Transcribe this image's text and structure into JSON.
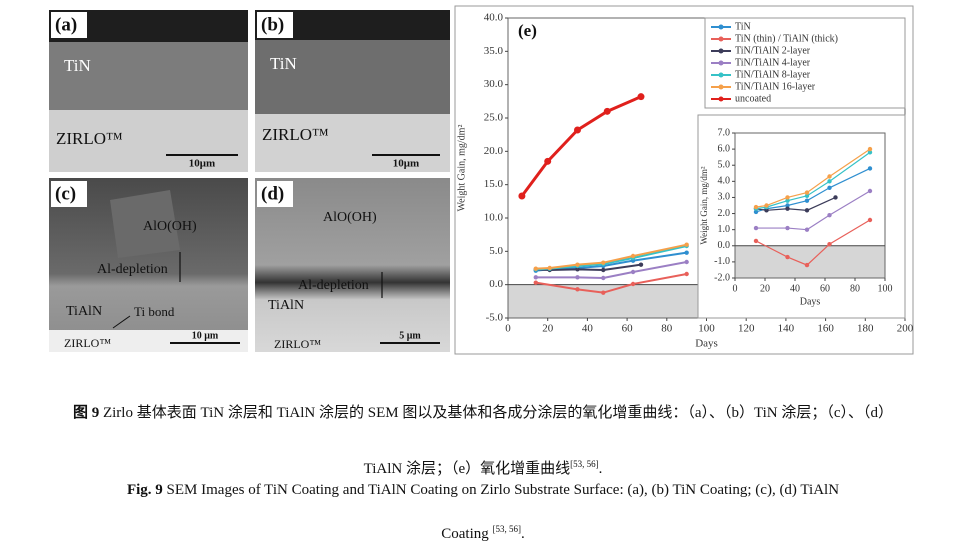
{
  "panels": {
    "a": {
      "label": "(a)",
      "layer_top": "TiN",
      "substrate": "ZIRLO™",
      "scale": "10μm"
    },
    "b": {
      "label": "(b)",
      "layer_top": "TiN",
      "substrate": "ZIRLO™",
      "scale": "10μm"
    },
    "c": {
      "label": "(c)",
      "oxide": "AlO(OH)",
      "depletion": "Al-depletion",
      "coating": "TiAlN",
      "bond": "Ti bond",
      "substrate": "ZIRLO™",
      "scale": "10 μm"
    },
    "d": {
      "label": "(d)",
      "oxide": "AlO(OH)",
      "depletion": "Al-depletion",
      "coating": "TiAlN",
      "substrate": "ZIRLO™",
      "scale": "5 μm"
    }
  },
  "chart_data": [
    {
      "type": "line",
      "panel_label": "(e)",
      "x_label": "Days",
      "y_label": "Weight Gain, mg/dm²",
      "xlim": [
        0,
        200
      ],
      "xticks": [
        0,
        20,
        40,
        60,
        80,
        100,
        120,
        140,
        160,
        180,
        200
      ],
      "ylim": [
        -5,
        40
      ],
      "yticks": [
        {
          "value": -5,
          "label": "-5.0"
        },
        {
          "value": 0,
          "label": "0.0"
        },
        {
          "value": 5,
          "label": "5.0"
        },
        {
          "value": 10,
          "label": "10.0"
        },
        {
          "value": 15,
          "label": "15.0"
        },
        {
          "value": 20,
          "label": "20.0"
        },
        {
          "value": 25,
          "label": "25.0"
        },
        {
          "value": 30,
          "label": "30.0"
        },
        {
          "value": 35,
          "label": "35.0"
        },
        {
          "value": 40,
          "label": "40.0"
        }
      ],
      "negative_shade": "#d6d6d6",
      "legend": "top-right",
      "series": [
        {
          "name": "TiN",
          "color": "#2f8fd0",
          "x": [
            14,
            21,
            35,
            48,
            63,
            90
          ],
          "values": [
            2.1,
            2.3,
            2.5,
            2.8,
            3.6,
            4.8
          ]
        },
        {
          "name": "TiN (thin) / TiAlN (thick)",
          "color": "#e8605a",
          "x": [
            14,
            35,
            48,
            63,
            90
          ],
          "values": [
            0.3,
            -0.7,
            -1.2,
            0.1,
            1.6
          ]
        },
        {
          "name": "TiN/TiAlN 2-layer",
          "color": "#3c3c5a",
          "x": [
            14,
            21,
            35,
            48,
            67
          ],
          "values": [
            2.3,
            2.2,
            2.3,
            2.2,
            3.0
          ]
        },
        {
          "name": "TiN/TiAlN 4-layer",
          "color": "#9b7fc4",
          "x": [
            14,
            35,
            48,
            63,
            90
          ],
          "values": [
            1.1,
            1.1,
            1.0,
            1.9,
            3.4
          ]
        },
        {
          "name": "TiN/TiAlN 8-layer",
          "color": "#36c2c7",
          "x": [
            14,
            21,
            35,
            48,
            63,
            90
          ],
          "values": [
            2.3,
            2.4,
            2.8,
            3.1,
            4.0,
            5.8
          ]
        },
        {
          "name": "TiN/TiAlN 16-layer",
          "color": "#f5a04a",
          "x": [
            14,
            21,
            35,
            48,
            63,
            90
          ],
          "values": [
            2.4,
            2.5,
            3.0,
            3.3,
            4.3,
            6.0
          ]
        },
        {
          "name": "uncoated",
          "color": "#e0201c",
          "x": [
            7,
            20,
            35,
            50,
            67
          ],
          "values": [
            13.3,
            18.5,
            23.2,
            26.0,
            28.2
          ]
        }
      ]
    },
    {
      "type": "line",
      "x_label": "Days",
      "y_label": "Weight Gain, mg/dm²",
      "xlim": [
        0,
        100
      ],
      "xticks": [
        0,
        20,
        40,
        60,
        80,
        100
      ],
      "ylim": [
        -2,
        7
      ],
      "yticks": [
        {
          "value": -2,
          "label": "-2.0"
        },
        {
          "value": -1,
          "label": "-1.0"
        },
        {
          "value": 0,
          "label": "0.0"
        },
        {
          "value": 1,
          "label": "1.0"
        },
        {
          "value": 2,
          "label": "2.0"
        },
        {
          "value": 3,
          "label": "3.0"
        },
        {
          "value": 4,
          "label": "4.0"
        },
        {
          "value": 5,
          "label": "5.0"
        },
        {
          "value": 6,
          "label": "6.0"
        },
        {
          "value": 7,
          "label": "7.0"
        }
      ],
      "negative_shade": "#d6d6d6",
      "series": [
        {
          "color": "#2f8fd0",
          "x": [
            14,
            21,
            35,
            48,
            63,
            90
          ],
          "values": [
            2.1,
            2.3,
            2.5,
            2.8,
            3.6,
            4.8
          ]
        },
        {
          "color": "#e8605a",
          "x": [
            14,
            35,
            48,
            63,
            90
          ],
          "values": [
            0.3,
            -0.7,
            -1.2,
            0.1,
            1.6
          ]
        },
        {
          "color": "#3c3c5a",
          "x": [
            14,
            21,
            35,
            48,
            67
          ],
          "values": [
            2.3,
            2.2,
            2.3,
            2.2,
            3.0
          ]
        },
        {
          "color": "#9b7fc4",
          "x": [
            14,
            35,
            48,
            63,
            90
          ],
          "values": [
            1.1,
            1.1,
            1.0,
            1.9,
            3.4
          ]
        },
        {
          "color": "#36c2c7",
          "x": [
            14,
            21,
            35,
            48,
            63,
            90
          ],
          "values": [
            2.3,
            2.4,
            2.8,
            3.1,
            4.0,
            5.8
          ]
        },
        {
          "color": "#f5a04a",
          "x": [
            14,
            21,
            35,
            48,
            63,
            90
          ],
          "values": [
            2.4,
            2.5,
            3.0,
            3.3,
            4.3,
            6.0
          ]
        }
      ]
    }
  ],
  "caption_cn": {
    "label": "图 9",
    "text_1": " Zirlo 基体表面 TiN 涂层和 TiAlN 涂层的 SEM 图以及基体和各成分涂层的氧化增重曲线：（a）、（b）TiN 涂层；（c）、（d）",
    "text_2": "TiAlN 涂层；（e）氧化增重曲线",
    "refs": "[53, 56]",
    "end": "."
  },
  "caption_en": {
    "label": "Fig. 9",
    "text_1": " SEM Images of TiN Coating and TiAlN Coating on Zirlo Substrate Surface: (a), (b) TiN Coating; (c), (d) TiAlN",
    "text_2": "Coating ",
    "refs": "[53, 56]",
    "end": "."
  }
}
